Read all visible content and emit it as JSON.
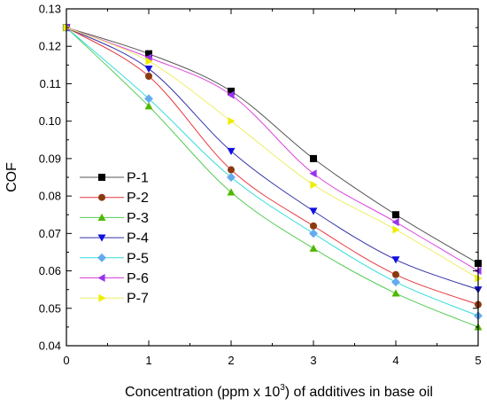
{
  "chart_data": {
    "type": "line",
    "xlabel_main": "Concentration (ppm x 10",
    "xlabel_sup": "3",
    "xlabel_tail": ") of additives in base oil",
    "ylabel": "COF",
    "x": [
      0,
      1,
      2,
      3,
      4,
      5
    ],
    "xlim": [
      0,
      5
    ],
    "ylim": [
      0.04,
      0.13
    ],
    "xticks": [
      "0",
      "1",
      "2",
      "3",
      "4",
      "5"
    ],
    "yticks": [
      "0.04",
      "0.05",
      "0.06",
      "0.07",
      "0.08",
      "0.09",
      "0.10",
      "0.11",
      "0.12",
      "0.13"
    ],
    "grid": false,
    "legend_position": "lower-left",
    "series": [
      {
        "name": "P-1",
        "values": [
          0.125,
          0.118,
          0.108,
          0.09,
          0.075,
          0.062
        ],
        "line_color": "#555555",
        "marker_color": "#000000",
        "marker": "square"
      },
      {
        "name": "P-2",
        "values": [
          0.125,
          0.112,
          0.087,
          0.072,
          0.059,
          0.051
        ],
        "line_color": "#e8393f",
        "marker_color": "#8b3a10",
        "marker": "circle"
      },
      {
        "name": "P-3",
        "values": [
          0.125,
          0.104,
          0.081,
          0.066,
          0.054,
          0.045
        ],
        "line_color": "#55cc55",
        "marker_color": "#4fb800",
        "marker": "triangle-up"
      },
      {
        "name": "P-4",
        "values": [
          0.125,
          0.114,
          0.092,
          0.076,
          0.063,
          0.055
        ],
        "line_color": "#3333aa",
        "marker_color": "#1010e0",
        "marker": "triangle-down"
      },
      {
        "name": "P-5",
        "values": [
          0.125,
          0.106,
          0.085,
          0.07,
          0.057,
          0.048
        ],
        "line_color": "#33dddd",
        "marker_color": "#66aaee",
        "marker": "diamond"
      },
      {
        "name": "P-6",
        "values": [
          0.125,
          0.117,
          0.107,
          0.086,
          0.073,
          0.06
        ],
        "line_color": "#dd44dd",
        "marker_color": "#9933ee",
        "marker": "triangle-left"
      },
      {
        "name": "P-7",
        "values": [
          0.125,
          0.116,
          0.1,
          0.083,
          0.071,
          0.058
        ],
        "line_color": "#eeee66",
        "marker_color": "#eeee00",
        "marker": "triangle-right"
      }
    ]
  }
}
